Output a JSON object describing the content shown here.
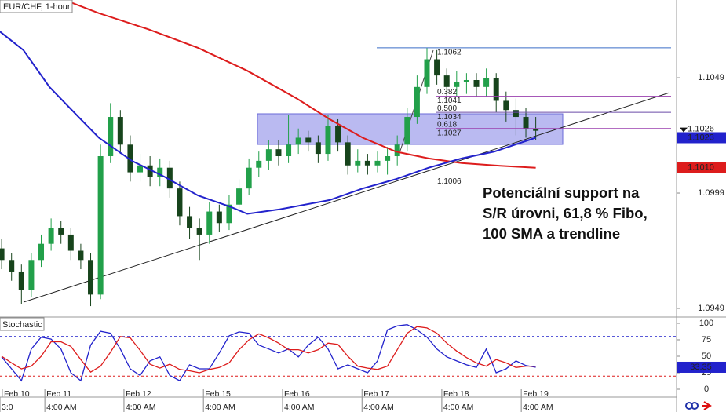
{
  "chart_data": [
    {
      "type": "candlestick",
      "title": "EUR/CHF, 1-hour",
      "x": [
        0.5,
        3.5,
        6.5,
        9.5,
        12.5,
        15.5,
        18.5,
        21.5,
        24.5,
        27.5,
        30.5,
        33.5,
        36.5,
        39.5,
        42.5,
        45.5,
        48.5,
        51.5,
        54.5,
        57.5,
        60.5,
        63.5,
        66.5,
        69.5,
        72.5,
        75.5,
        78.5,
        81.5,
        84.5,
        87.5,
        90.5,
        93.5,
        96.5,
        99.5,
        102.5,
        105.5,
        108.5,
        111.5,
        114.5,
        117.5,
        120.5,
        123.5,
        126.5,
        129.5,
        132.5,
        135.5,
        138.5,
        141.5,
        144.5,
        147.5,
        150.5,
        153.5,
        156.5,
        159.5,
        162.5
      ],
      "open": [
        1.0975,
        1.097,
        1.0965,
        1.0957,
        1.097,
        1.0977,
        1.0984,
        1.0981,
        1.0974,
        1.097,
        1.0955,
        1.1015,
        1.1032,
        1.102,
        1.1008,
        1.1011,
        1.1006,
        1.101,
        1.1001,
        1.0989,
        1.0984,
        1.0981,
        1.0991,
        1.0986,
        1.0994,
        1.1001,
        1.101,
        1.1013,
        1.1018,
        1.1015,
        1.102,
        1.1023,
        1.1021,
        1.1016,
        1.1028,
        1.1021,
        1.1011,
        1.1013,
        1.1011,
        1.1013,
        1.1015,
        1.102,
        1.1032,
        1.1045,
        1.1057,
        1.105,
        1.1045,
        1.1047,
        1.1048,
        1.1045,
        1.1049,
        1.1039,
        1.1035,
        1.1032,
        1.1027
      ],
      "high": [
        1.0979,
        1.0973,
        1.0968,
        1.0973,
        1.0981,
        1.0988,
        1.0987,
        1.0984,
        1.0977,
        1.0973,
        1.102,
        1.1038,
        1.1035,
        1.1024,
        1.1016,
        1.1015,
        1.1014,
        1.1013,
        1.1004,
        1.0993,
        1.0988,
        1.0995,
        1.0994,
        1.0998,
        1.1005,
        1.1014,
        1.1017,
        1.1022,
        1.1022,
        1.1033,
        1.1027,
        1.1026,
        1.1024,
        1.1033,
        1.1031,
        1.1024,
        1.1018,
        1.1016,
        1.1017,
        1.1019,
        1.1024,
        1.1036,
        1.105,
        1.1062,
        1.1061,
        1.1053,
        1.1052,
        1.1051,
        1.1051,
        1.1053,
        1.1051,
        1.1043,
        1.104,
        1.1036,
        1.1032
      ],
      "low": [
        1.0966,
        1.0961,
        1.0951,
        1.0954,
        1.0967,
        1.0974,
        1.0977,
        1.097,
        1.0966,
        1.095,
        1.0953,
        1.1012,
        1.1016,
        1.1004,
        1.1004,
        1.1002,
        1.1002,
        1.0997,
        1.0985,
        1.0979,
        1.097,
        1.0977,
        1.0982,
        1.0983,
        1.099,
        1.0998,
        1.1006,
        1.1009,
        1.1011,
        1.1012,
        1.1016,
        1.1017,
        1.1012,
        1.1013,
        1.1017,
        1.1007,
        1.1008,
        1.1007,
        1.1008,
        1.1007,
        1.1011,
        1.1017,
        1.1029,
        1.1042,
        1.1046,
        1.104,
        1.1041,
        1.1042,
        1.1041,
        1.1041,
        1.1034,
        1.103,
        1.1024,
        1.1023,
        1.1022
      ],
      "close": [
        1.097,
        1.0965,
        1.0957,
        1.097,
        1.0977,
        1.0984,
        1.0981,
        1.0974,
        1.097,
        1.0955,
        1.1015,
        1.1032,
        1.102,
        1.1008,
        1.1011,
        1.1006,
        1.101,
        1.1001,
        1.0989,
        1.0984,
        1.0981,
        1.0991,
        1.0986,
        1.0994,
        1.1001,
        1.101,
        1.1013,
        1.1018,
        1.1015,
        1.102,
        1.1023,
        1.1021,
        1.1016,
        1.1028,
        1.1021,
        1.1011,
        1.1013,
        1.1011,
        1.1013,
        1.1015,
        1.102,
        1.1032,
        1.1045,
        1.1057,
        1.105,
        1.1045,
        1.1047,
        1.1048,
        1.1045,
        1.1049,
        1.1039,
        1.1035,
        1.1032,
        1.1027,
        1.1026
      ],
      "up_color": "#22a04a",
      "down_color": "#17441c",
      "series": [
        {
          "color": "#dd1c1c",
          "x": [
            19,
            30,
            45,
            60,
            75,
            90,
            100,
            110,
            120,
            130,
            140,
            150,
            162.5
          ],
          "values": [
            1.1083,
            1.1077,
            1.107,
            1.1062,
            1.1052,
            1.104,
            1.1031,
            1.1023,
            1.1017,
            1.1014,
            1.1012,
            1.1011,
            1.101
          ],
          "badge": {
            "value": 1.101,
            "label": "1.1010"
          }
        },
        {
          "color": "#2222cc",
          "x": [
            0,
            7.1,
            15,
            23.8,
            30,
            40,
            50,
            60,
            70,
            75,
            85,
            100,
            110,
            120,
            130,
            140,
            150,
            162.5
          ],
          "values": [
            1.1069,
            1.1061,
            1.1045,
            1.1032,
            1.1023,
            1.1013,
            1.1006,
            1.0998,
            1.0993,
            1.099,
            1.0992,
            1.0996,
            1.1001,
            1.1005,
            1.101,
            1.1014,
            1.1017,
            1.1023
          ],
          "badge": 1.1023
        }
      ],
      "current_price": 1.1026,
      "fibonacci": [
        {
          "price": 1.1062,
          "color": "#3a6ec8"
        },
        {
          "ratio_label": "0.382",
          "price": 1.1041,
          "color": "#9a3fae"
        },
        {
          "ratio_label": "0.500",
          "price": 1.1034,
          "color": "#6a4aa8"
        },
        {
          "ratio_label": "0.618",
          "price": 1.1027,
          "color": "#9a3fae"
        },
        {
          "price": 1.1006,
          "color": "#3a6ec8"
        }
      ],
      "annotation": [
        "Potenciální support na",
        "S/R úrovni, 61,8 % Fibo,",
        "100 SMA a trendline"
      ],
      "xlim": [
        0,
        205.2
      ],
      "ylim": [
        1.09456,
        1.10827
      ],
      "yticks": [
        1.1049,
        1.0999,
        1.0949
      ],
      "xticks": [
        {
          "value": 0.7,
          "label": "Feb 10"
        },
        {
          "value": 13.6,
          "label": "Feb 11"
        },
        {
          "value": 37.6,
          "label": "Feb 12"
        },
        {
          "value": 61.7,
          "label": "Feb 15"
        },
        {
          "value": 85.7,
          "label": "Feb 16"
        },
        {
          "value": 109.8,
          "label": "Feb 17"
        },
        {
          "value": 134,
          "label": "Feb 18"
        },
        {
          "value": 158.1,
          "label": "Feb 19"
        }
      ],
      "time_ticks": [
        {
          "value": 0,
          "label": "3:0"
        },
        {
          "value": 13.6,
          "label": "4:00 AM"
        },
        {
          "value": 37.6,
          "label": "4:00 AM"
        },
        {
          "value": 61.7,
          "label": "4:00 AM"
        },
        {
          "value": 85.7,
          "label": "4:00 AM"
        },
        {
          "value": 109.8,
          "label": "4:00 AM"
        },
        {
          "value": 134,
          "label": "4:00 AM"
        },
        {
          "value": 158.1,
          "label": "4:00 AM"
        }
      ]
    },
    {
      "type": "line",
      "title": "Stochastic",
      "x": [
        0.5,
        3.5,
        6.5,
        9.5,
        12.5,
        15.5,
        18.5,
        21.5,
        24.5,
        27.5,
        30.5,
        33.5,
        36.5,
        39.5,
        42.5,
        45.5,
        48.5,
        51.5,
        54.5,
        57.5,
        60.5,
        63.5,
        66.5,
        69.5,
        72.5,
        75.5,
        78.5,
        81.5,
        84.5,
        87.5,
        90.5,
        93.5,
        96.5,
        99.5,
        102.5,
        105.5,
        108.5,
        111.5,
        114.5,
        117.5,
        120.5,
        123.5,
        126.5,
        129.5,
        132.5,
        135.5,
        138.5,
        141.5,
        144.5,
        147.5,
        150.5,
        153.5,
        156.5,
        159.5,
        162.5
      ],
      "series": [
        {
          "color": "#2222cc",
          "values": [
            49,
            31,
            13,
            61,
            79,
            76,
            61,
            25,
            13,
            67,
            88,
            85,
            61,
            31,
            21,
            43,
            49,
            21,
            13,
            37,
            31,
            31,
            55,
            81,
            87,
            85,
            67,
            61,
            55,
            61,
            49,
            67,
            79,
            61,
            31,
            37,
            31,
            25,
            43,
            90,
            96,
            98,
            90,
            79,
            61,
            49,
            43,
            37,
            33,
            61,
            25,
            31,
            43,
            36,
            33.35
          ]
        },
        {
          "color": "#dd1c1c",
          "values": [
            50,
            40,
            31,
            35,
            50,
            72,
            72,
            65,
            45,
            26,
            35,
            56,
            80,
            78,
            59,
            38,
            32,
            38,
            30,
            28,
            25,
            30,
            33,
            40,
            60,
            75,
            84,
            78,
            70,
            60,
            60,
            55,
            60,
            70,
            68,
            50,
            35,
            32,
            30,
            35,
            60,
            85,
            95,
            93,
            85,
            70,
            58,
            48,
            40,
            35,
            45,
            40,
            33,
            35,
            35
          ]
        }
      ],
      "levels": [
        80,
        20
      ],
      "level_colors": [
        "#2222cc",
        "#dd1c1c"
      ],
      "badge": 33.35,
      "xlim": [
        0,
        205.2
      ],
      "ylim": [
        -10.7,
        108.3
      ],
      "yticks": [
        100,
        75,
        50,
        25,
        0
      ]
    }
  ]
}
